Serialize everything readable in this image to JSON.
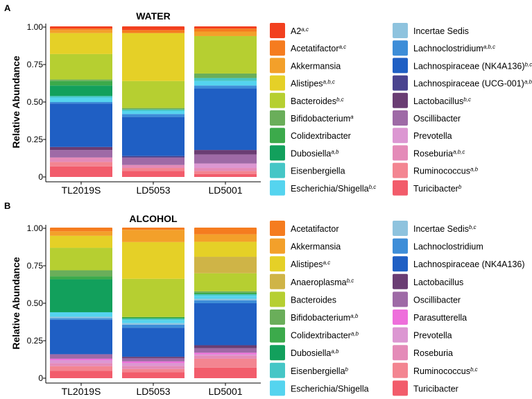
{
  "chart_data": [
    {
      "panel": "A",
      "type": "bar",
      "stacked": true,
      "title": "WATER",
      "xlabel": "",
      "ylabel": "Relative Abundance",
      "ylim": [
        0,
        1
      ],
      "yticks": [
        "0",
        "0.25",
        "0.50",
        "0.75",
        "1.00"
      ],
      "categories": [
        "TL2019S",
        "LD5053",
        "LD5001"
      ],
      "series": [
        {
          "name": "Turicibacter",
          "sup": "b",
          "color": "#f25c6b",
          "values": [
            0.07,
            0.04,
            0.02
          ]
        },
        {
          "name": "Ruminococcus",
          "sup": "a,b",
          "color": "#f38591",
          "values": [
            0.03,
            0.02,
            0.02
          ]
        },
        {
          "name": "Roseburia",
          "sup": "a,b,c",
          "color": "#e48bb8",
          "values": [
            0.03,
            0.02,
            0.02
          ]
        },
        {
          "name": "Prevotella",
          "sup": "",
          "color": "#dc97d2",
          "values": [
            0.0,
            0.0,
            0.03
          ]
        },
        {
          "name": "Oscillibacter",
          "sup": "",
          "color": "#9e6aa6",
          "values": [
            0.05,
            0.05,
            0.06
          ]
        },
        {
          "name": "Lactobacillus",
          "sup": "b,c",
          "color": "#6a3d73",
          "values": [
            0.02,
            0.0,
            0.03
          ]
        },
        {
          "name": "Lachnospiraceae (UCG-001)",
          "sup": "a,b",
          "color": "#4a438f",
          "values": [
            0.0,
            0.01,
            0.0
          ]
        },
        {
          "name": "Lachnospiraceae (NK4A136)",
          "sup": "b,c",
          "color": "#1f5fc4",
          "values": [
            0.29,
            0.26,
            0.41
          ]
        },
        {
          "name": "Lachnoclostridium",
          "sup": "a,b,c",
          "color": "#3d8dd8",
          "values": [
            0.01,
            0.02,
            0.02
          ]
        },
        {
          "name": "Incertae Sedis",
          "sup": "",
          "color": "#8ec3de",
          "values": [
            0.0,
            0.0,
            0.0
          ]
        },
        {
          "name": "Escherichia/Shigella",
          "sup": "b,c",
          "color": "#55d4ef",
          "values": [
            0.03,
            0.02,
            0.03
          ]
        },
        {
          "name": "Eisenbergiella",
          "sup": "",
          "color": "#45c6c6",
          "values": [
            0.01,
            0.01,
            0.02
          ]
        },
        {
          "name": "Dubosiella",
          "sup": "a,b",
          "color": "#12a05c",
          "values": [
            0.07,
            0.0,
            0.0
          ]
        },
        {
          "name": "Colidextribacter",
          "sup": "",
          "color": "#3caa4b",
          "values": [
            0.03,
            0.0,
            0.0
          ]
        },
        {
          "name": "Bifidobacterium",
          "sup": "a",
          "color": "#6aae5a",
          "values": [
            0.01,
            0.01,
            0.03
          ]
        },
        {
          "name": "Bacteroides",
          "sup": "b,c",
          "color": "#b6cf31",
          "values": [
            0.17,
            0.18,
            0.25
          ]
        },
        {
          "name": "Alistipes",
          "sup": "a,b,c",
          "color": "#e5d027",
          "values": [
            0.14,
            0.32,
            0.0
          ]
        },
        {
          "name": "Akkermansia",
          "sup": "",
          "color": "#f3a02a",
          "values": [
            0.02,
            0.0,
            0.03
          ]
        },
        {
          "name": "Acetatifactor",
          "sup": "a,c",
          "color": "#f57c1f",
          "values": [
            0.01,
            0.02,
            0.02
          ]
        },
        {
          "name": "A2",
          "sup": "a,c",
          "color": "#f2401f",
          "values": [
            0.01,
            0.02,
            0.01
          ]
        }
      ]
    },
    {
      "panel": "B",
      "type": "bar",
      "stacked": true,
      "title": "ALCOHOL",
      "xlabel": "",
      "ylabel": "Relative Abundance",
      "ylim": [
        0,
        1
      ],
      "yticks": [
        "0",
        "0.25",
        "0.50",
        "0.75",
        "1.00"
      ],
      "categories": [
        "TL2019S",
        "LD5053",
        "LD5001"
      ],
      "series": [
        {
          "name": "Turicibacter",
          "sup": "",
          "color": "#f25c6b",
          "values": [
            0.05,
            0.04,
            0.07
          ]
        },
        {
          "name": "Ruminococcus",
          "sup": "b,c",
          "color": "#f38591",
          "values": [
            0.03,
            0.02,
            0.06
          ]
        },
        {
          "name": "Roseburia",
          "sup": "",
          "color": "#e48bb8",
          "values": [
            0.02,
            0.02,
            0.02
          ]
        },
        {
          "name": "Prevotella",
          "sup": "",
          "color": "#dc97d2",
          "values": [
            0.02,
            0.02,
            0.01
          ]
        },
        {
          "name": "Parasutterella",
          "sup": "",
          "color": "#ee6fdb",
          "values": [
            0.01,
            0.01,
            0.01
          ]
        },
        {
          "name": "Oscillibacter",
          "sup": "",
          "color": "#9e6aa6",
          "values": [
            0.03,
            0.02,
            0.03
          ]
        },
        {
          "name": "Lactobacillus",
          "sup": "",
          "color": "#6a3d73",
          "values": [
            0.0,
            0.01,
            0.02
          ]
        },
        {
          "name": "Lachnospiraceae (NK4A136)",
          "sup": "",
          "color": "#1f5fc4",
          "values": [
            0.23,
            0.19,
            0.28
          ]
        },
        {
          "name": "Lachnoclostridium",
          "sup": "",
          "color": "#3d8dd8",
          "values": [
            0.01,
            0.02,
            0.02
          ]
        },
        {
          "name": "Incertae Sedis",
          "sup": "b,c",
          "color": "#8ec3de",
          "values": [
            0.01,
            0.01,
            0.01
          ]
        },
        {
          "name": "Escherichia/Shigella",
          "sup": "",
          "color": "#55d4ef",
          "values": [
            0.03,
            0.02,
            0.02
          ]
        },
        {
          "name": "Eisenbergiella",
          "sup": "b",
          "color": "#45c6c6",
          "values": [
            0.0,
            0.01,
            0.01
          ]
        },
        {
          "name": "Dubosiella",
          "sup": "a,b",
          "color": "#12a05c",
          "values": [
            0.22,
            0.0,
            0.0
          ]
        },
        {
          "name": "Colidextribacter",
          "sup": "a,b",
          "color": "#3caa4b",
          "values": [
            0.02,
            0.01,
            0.01
          ]
        },
        {
          "name": "Bifidobacterium",
          "sup": "a,b",
          "color": "#6aae5a",
          "values": [
            0.04,
            0.0,
            0.01
          ]
        },
        {
          "name": "Bacteroides",
          "sup": "",
          "color": "#b6cf31",
          "values": [
            0.15,
            0.25,
            0.12
          ]
        },
        {
          "name": "Anaeroplasma",
          "sup": "b,c",
          "color": "#cfb447",
          "values": [
            0.0,
            0.0,
            0.11
          ]
        },
        {
          "name": "Alistipes",
          "sup": "a,c",
          "color": "#e5d027",
          "values": [
            0.08,
            0.24,
            0.1
          ]
        },
        {
          "name": "Akkermansia",
          "sup": "",
          "color": "#f3a02a",
          "values": [
            0.03,
            0.08,
            0.05
          ]
        },
        {
          "name": "Acetatifactor",
          "sup": "",
          "color": "#f57c1f",
          "values": [
            0.02,
            0.01,
            0.04
          ]
        }
      ]
    }
  ]
}
